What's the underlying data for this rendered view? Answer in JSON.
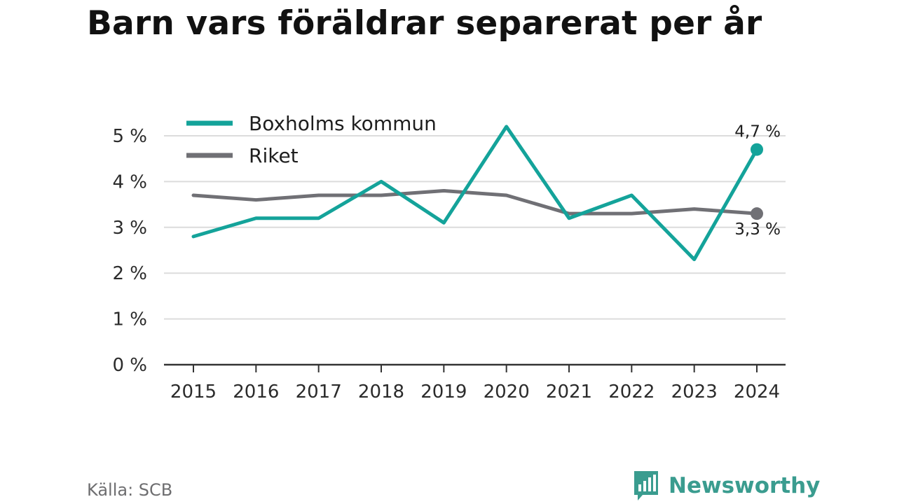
{
  "title": "Barn vars föräldrar separerat per år",
  "source": "Källa: SCB",
  "brand": {
    "name": "Newsworthy",
    "icon": "newsworthy-logo-icon",
    "color": "#3a9c8f"
  },
  "chart_data": {
    "type": "line",
    "x": [
      "2015",
      "2016",
      "2017",
      "2018",
      "2019",
      "2020",
      "2021",
      "2022",
      "2023",
      "2024"
    ],
    "y_ticks": [
      "0 %",
      "1 %",
      "2 %",
      "3 %",
      "4 %",
      "5 %"
    ],
    "ylim": [
      0,
      5.3
    ],
    "grid": true,
    "legend_position": "top-left",
    "series": [
      {
        "name": "Boxholms kommun",
        "color": "#14a39a",
        "values": [
          2.8,
          3.2,
          3.2,
          4.0,
          3.1,
          5.2,
          3.2,
          3.7,
          2.3,
          4.7
        ],
        "end_label": "4,7 %"
      },
      {
        "name": "Riket",
        "color": "#707075",
        "values": [
          3.7,
          3.6,
          3.7,
          3.7,
          3.8,
          3.7,
          3.3,
          3.3,
          3.4,
          3.3
        ],
        "end_label": "3,3 %"
      }
    ]
  }
}
